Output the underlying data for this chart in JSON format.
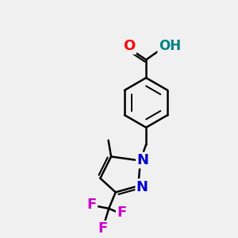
{
  "bg_color": "#f0f0f0",
  "bond_color": "#000000",
  "bond_width": 1.8,
  "atom_colors": {
    "O_carbonyl": "#ff0000",
    "O_hydroxyl": "#008080",
    "N": "#0000cc",
    "F": "#cc00cc",
    "C": "#000000"
  },
  "font_size": 12,
  "fig_size": [
    3.0,
    3.0
  ],
  "dpi": 100
}
